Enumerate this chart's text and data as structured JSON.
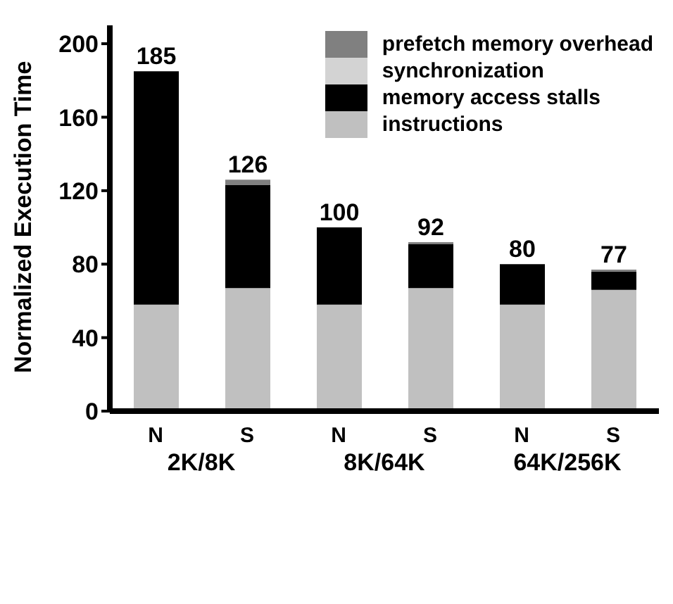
{
  "chart_data": {
    "type": "bar",
    "stacked": true,
    "ylabel": "Normalized Execution Time",
    "categories": [
      "N",
      "S",
      "N",
      "S",
      "N",
      "S"
    ],
    "annotations": [
      "2K/8K",
      "8K/64K",
      "64K/256K"
    ],
    "series": [
      {
        "name": "instructions",
        "color": "#c0c0c0",
        "values": [
          58,
          67,
          58,
          67,
          58,
          66
        ]
      },
      {
        "name": "memory access stalls",
        "color": "#000000",
        "values": [
          127,
          56,
          42,
          24,
          22,
          10
        ]
      },
      {
        "name": "synchronization",
        "color": "#d3d3d3",
        "values": [
          0,
          null,
          0,
          null,
          0,
          0
        ]
      },
      {
        "name": "prefetch memory overhead",
        "color": "#808080",
        "values": [
          0,
          3,
          0,
          1,
          0,
          1
        ]
      }
    ],
    "totals": [
      "185",
      "126",
      "100",
      "92",
      "80",
      "77"
    ],
    "ylim": [
      0,
      210
    ],
    "yticks": [
      0,
      40,
      80,
      120,
      160,
      200
    ],
    "grid": false,
    "legend": "top right"
  }
}
